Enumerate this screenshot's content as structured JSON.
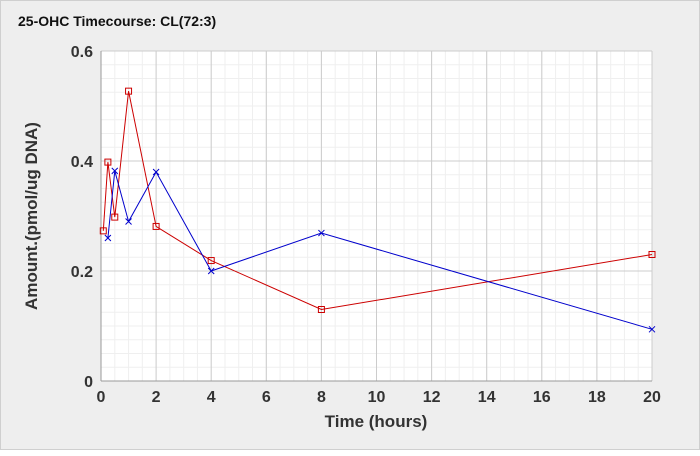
{
  "chart_data": {
    "type": "line",
    "title": "25-OHC Timecourse: CL(72:3)",
    "xlabel": "Time (hours)",
    "ylabel": "Amount.(pmol/ug DNA)",
    "xlim": [
      0,
      20
    ],
    "ylim": [
      0,
      0.6
    ],
    "xticks": [
      0,
      2,
      4,
      6,
      8,
      10,
      12,
      14,
      16,
      18,
      20
    ],
    "yticks": [
      0,
      0.2,
      0.4,
      0.6
    ],
    "ytick_labels": [
      "0",
      "0.2",
      "0.4",
      "0.6"
    ],
    "grid": true,
    "series": [
      {
        "color": "#cc0000",
        "marker": "square",
        "x": [
          0.083,
          0.25,
          0.5,
          1,
          2,
          4,
          8,
          20
        ],
        "y": [
          0.273,
          0.398,
          0.298,
          0.527,
          0.281,
          0.219,
          0.13,
          0.23
        ]
      },
      {
        "color": "#0000cc",
        "marker": "x",
        "x": [
          0.25,
          0.5,
          1,
          2,
          4,
          8,
          20
        ],
        "y": [
          0.26,
          0.382,
          0.29,
          0.38,
          0.2,
          0.269,
          0.094
        ]
      }
    ]
  }
}
